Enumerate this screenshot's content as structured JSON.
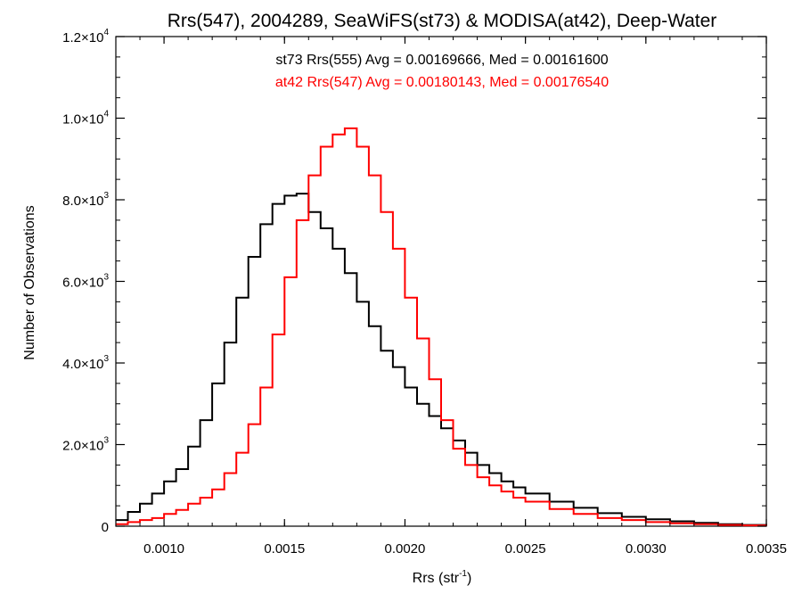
{
  "chart_data": {
    "type": "line",
    "title": "Rrs(547), 2004289, SeaWiFS(st73) & MODISA(at42), Deep-Water",
    "xlabel": "Rrs (str",
    "xlabel_sup": "-1",
    "xlabel_end": ")",
    "ylabel": "Number of Observations",
    "xlim": [
      0.0008,
      0.0035
    ],
    "ylim": [
      0,
      12000
    ],
    "x_ticks": [
      {
        "value": 0.001,
        "label": "0.0010"
      },
      {
        "value": 0.0015,
        "label": "0.0015"
      },
      {
        "value": 0.002,
        "label": "0.0020"
      },
      {
        "value": 0.0025,
        "label": "0.0025"
      },
      {
        "value": 0.003,
        "label": "0.0030"
      },
      {
        "value": 0.0035,
        "label": "0.0035"
      }
    ],
    "y_ticks": [
      {
        "value": 0,
        "mant": "0",
        "exp": ""
      },
      {
        "value": 2000,
        "mant": "2.0×10",
        "exp": "3"
      },
      {
        "value": 4000,
        "mant": "4.0×10",
        "exp": "3"
      },
      {
        "value": 6000,
        "mant": "6.0×10",
        "exp": "3"
      },
      {
        "value": 8000,
        "mant": "8.0×10",
        "exp": "3"
      },
      {
        "value": 10000,
        "mant": "1.0×10",
        "exp": "4"
      },
      {
        "value": 12000,
        "mant": "1.2×10",
        "exp": "4"
      }
    ],
    "annotations": [
      {
        "text": "st73 Rrs(555) Avg = 0.00169666, Med = 0.00161600",
        "color": "#000000"
      },
      {
        "text": "at42 Rrs(547) Avg = 0.00180143, Med = 0.00176540",
        "color": "#ff0000"
      }
    ],
    "series": [
      {
        "color": "#000000",
        "style": "step",
        "x": [
          0.0008,
          0.00085,
          0.0009,
          0.00095,
          0.001,
          0.00105,
          0.0011,
          0.00115,
          0.0012,
          0.00125,
          0.0013,
          0.00135,
          0.0014,
          0.00145,
          0.0015,
          0.00155,
          0.0016,
          0.00165,
          0.0017,
          0.00175,
          0.0018,
          0.00185,
          0.0019,
          0.00195,
          0.002,
          0.00205,
          0.0021,
          0.00215,
          0.0022,
          0.00225,
          0.0023,
          0.00235,
          0.0024,
          0.00245,
          0.0025,
          0.0026,
          0.0027,
          0.0028,
          0.0029,
          0.003,
          0.0031,
          0.0032,
          0.0033,
          0.0034,
          0.0035
        ],
        "y": [
          150,
          350,
          550,
          800,
          1100,
          1400,
          1950,
          2600,
          3500,
          4500,
          5600,
          6600,
          7400,
          7900,
          8100,
          8150,
          7700,
          7300,
          6800,
          6200,
          5500,
          4900,
          4300,
          3900,
          3400,
          3000,
          2700,
          2400,
          2100,
          1800,
          1500,
          1300,
          1100,
          950,
          800,
          600,
          450,
          320,
          230,
          170,
          120,
          80,
          50,
          30,
          20
        ]
      },
      {
        "color": "#ff0000",
        "style": "step",
        "x": [
          0.0008,
          0.00085,
          0.0009,
          0.00095,
          0.001,
          0.00105,
          0.0011,
          0.00115,
          0.0012,
          0.00125,
          0.0013,
          0.00135,
          0.0014,
          0.00145,
          0.0015,
          0.00155,
          0.0016,
          0.00165,
          0.0017,
          0.00175,
          0.0018,
          0.00185,
          0.0019,
          0.00195,
          0.002,
          0.00205,
          0.0021,
          0.00215,
          0.0022,
          0.00225,
          0.0023,
          0.00235,
          0.0024,
          0.00245,
          0.0025,
          0.0026,
          0.0027,
          0.0028,
          0.0029,
          0.003,
          0.0031,
          0.0032,
          0.0033,
          0.0034,
          0.0035
        ],
        "y": [
          50,
          100,
          150,
          200,
          300,
          400,
          550,
          700,
          900,
          1300,
          1800,
          2500,
          3400,
          4700,
          6100,
          7500,
          8600,
          9300,
          9600,
          9750,
          9300,
          8600,
          7700,
          6800,
          5600,
          4600,
          3600,
          2600,
          1900,
          1500,
          1200,
          1000,
          850,
          700,
          600,
          420,
          300,
          200,
          150,
          100,
          70,
          50,
          30,
          20,
          10
        ]
      }
    ]
  }
}
